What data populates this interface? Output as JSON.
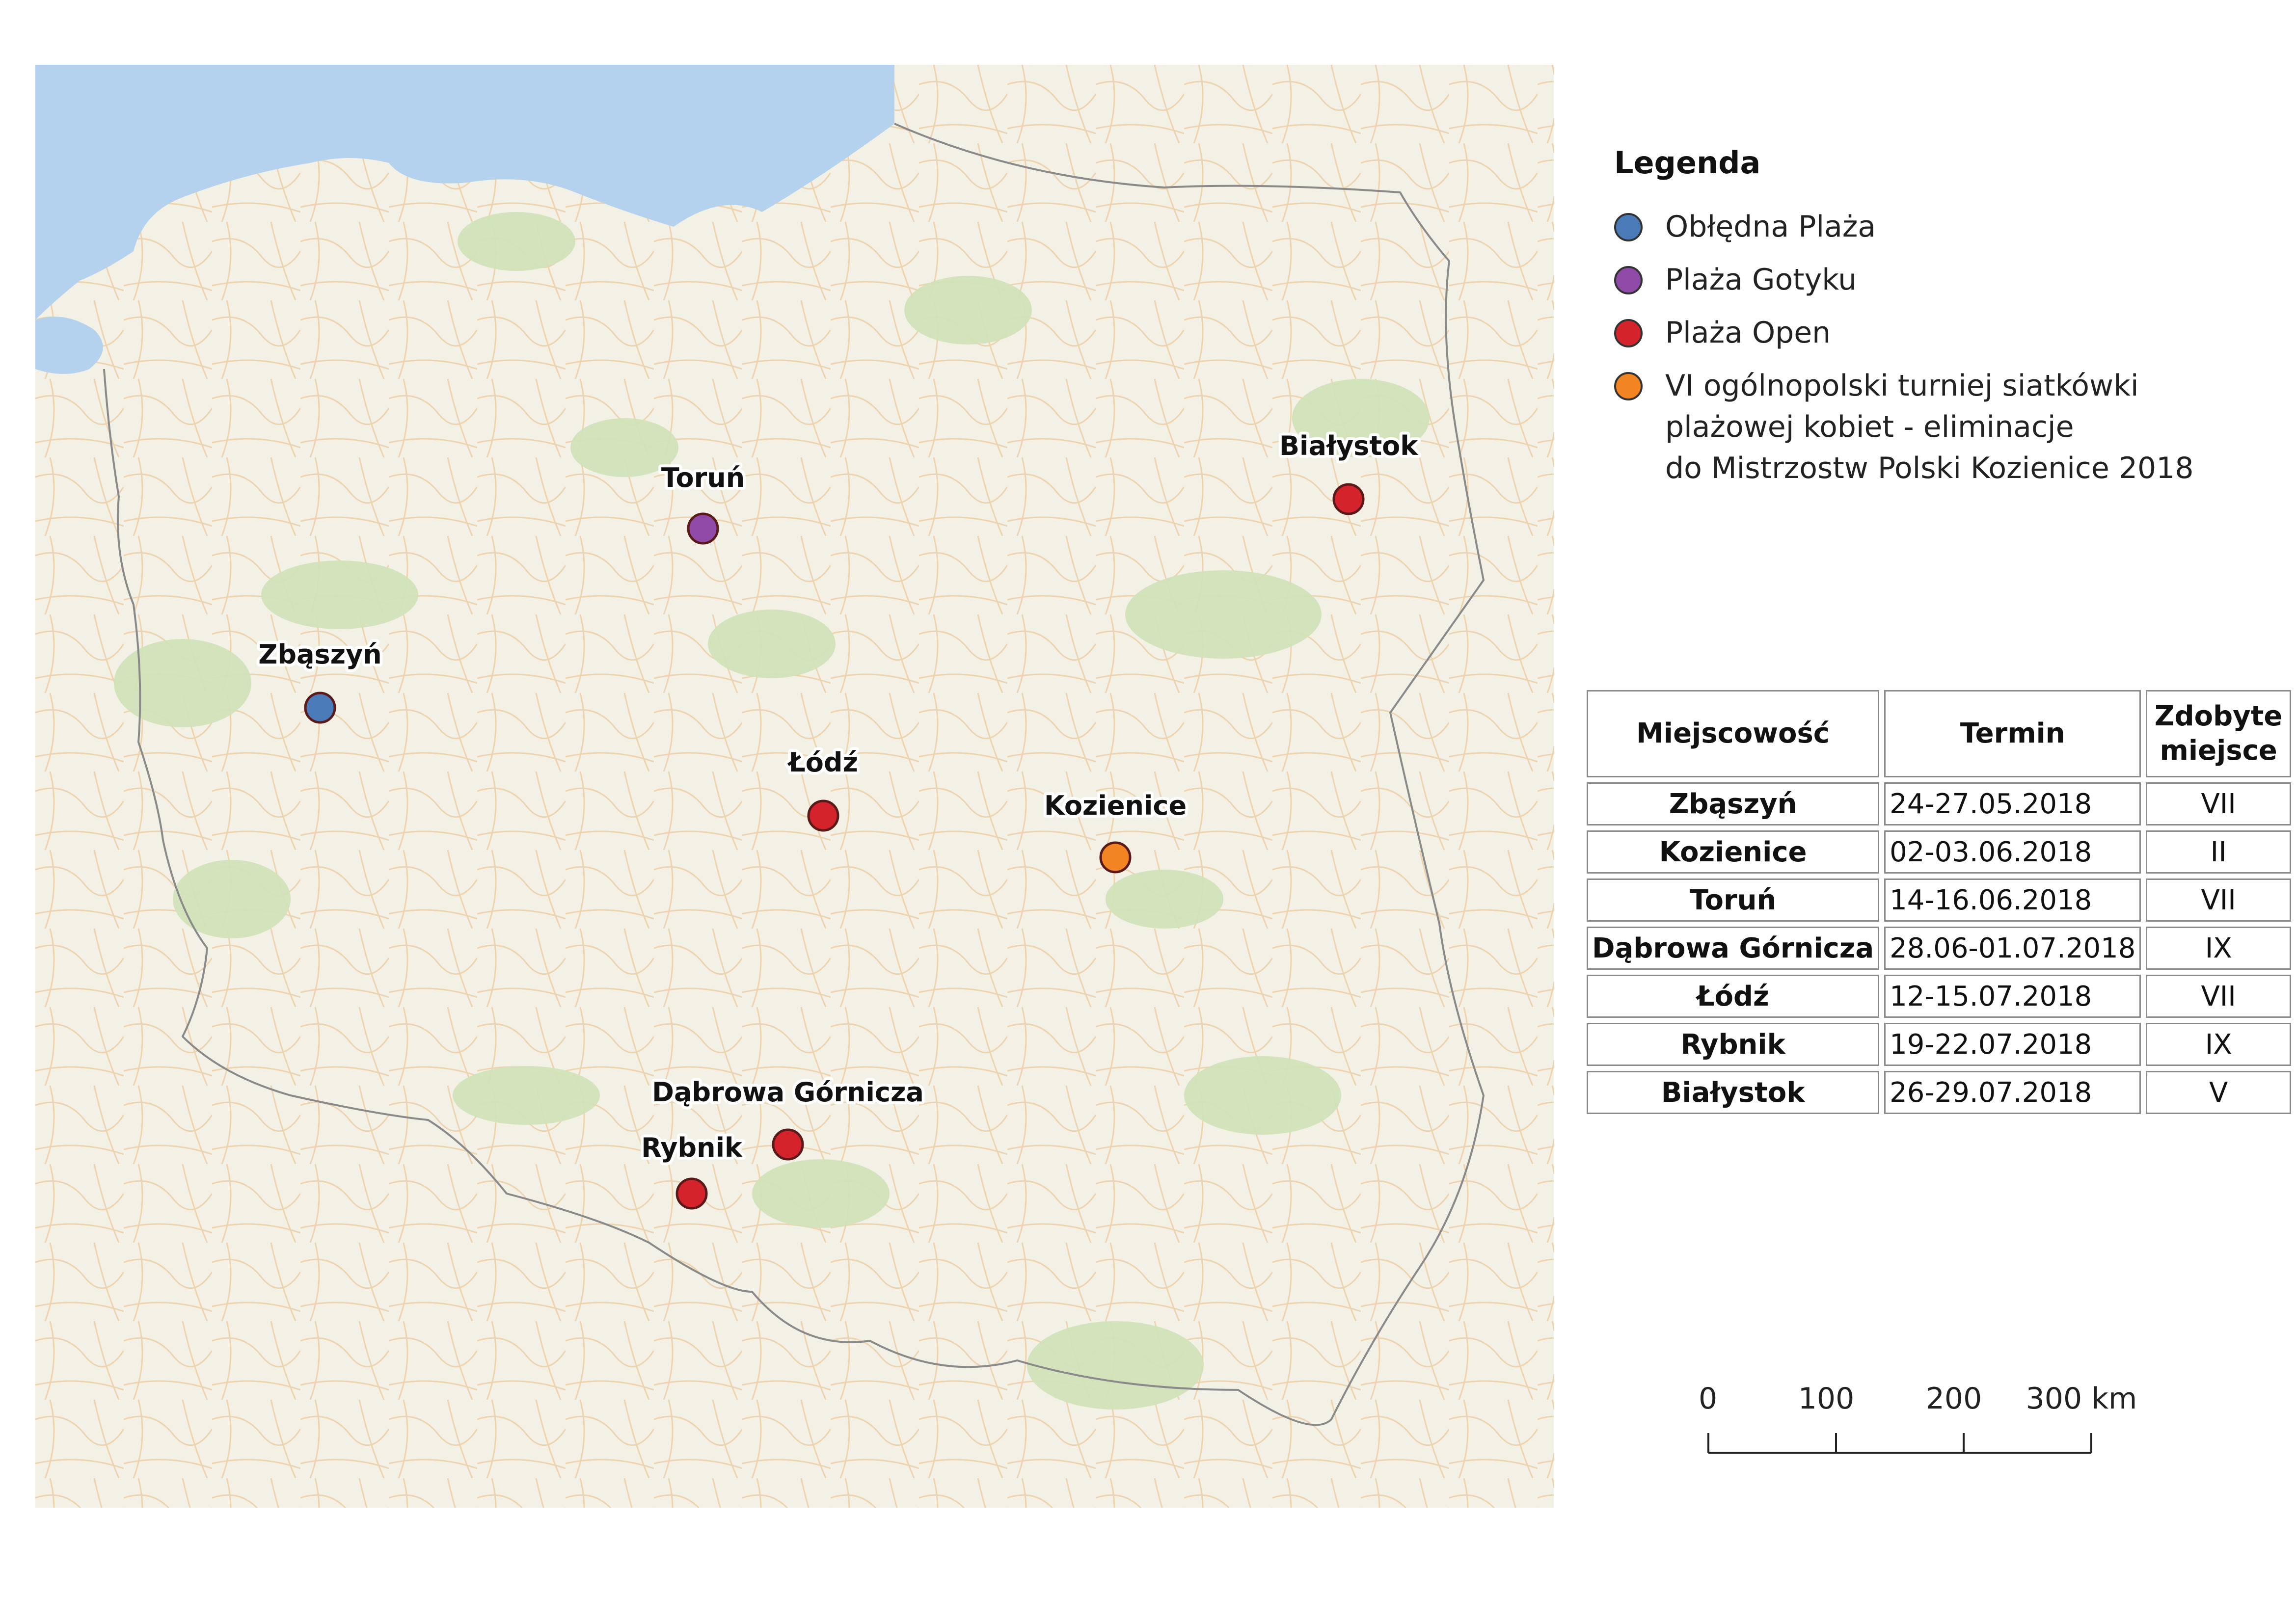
{
  "legend": {
    "title": "Legenda",
    "items": [
      {
        "label": "Obłędna Plaża",
        "color": "#4a7ab8"
      },
      {
        "label": "Plaża Gotyku",
        "color": "#8f4aa8"
      },
      {
        "label": "Plaża Open",
        "color": "#d4232b"
      },
      {
        "label": "VI ogólnopolski turniej siatkówki\nplażowej kobiet - eliminacje\ndo Mistrzostw Polski Kozienice 2018",
        "color": "#f28421"
      }
    ]
  },
  "map": {
    "cities": [
      {
        "name": "Toruń",
        "category": 1
      },
      {
        "name": "Białystok",
        "category": 2
      },
      {
        "name": "Zbąszyń",
        "category": 0
      },
      {
        "name": "Łódź",
        "category": 2
      },
      {
        "name": "Kozienice",
        "category": 3
      },
      {
        "name": "Dąbrowa Górnicza",
        "category": 2
      },
      {
        "name": "Rybnik",
        "category": 2
      }
    ]
  },
  "table": {
    "headers": [
      "Miejscowość",
      "Termin",
      "Zdobyte\nmiejsce"
    ],
    "rows": [
      [
        "Zbąszyń",
        "24-27.05.2018",
        "VII"
      ],
      [
        "Kozienice",
        "02-03.06.2018",
        "II"
      ],
      [
        "Toruń",
        "14-16.06.2018",
        "VII"
      ],
      [
        "Dąbrowa Górnicza",
        "28.06-01.07.2018",
        "IX"
      ],
      [
        "Łódź",
        "12-15.07.2018",
        "VII"
      ],
      [
        "Rybnik",
        "19-22.07.2018",
        "IX"
      ],
      [
        "Białystok",
        "26-29.07.2018",
        "V"
      ]
    ]
  },
  "scale": {
    "labels": [
      "0",
      "100",
      "200",
      "300 km"
    ]
  }
}
